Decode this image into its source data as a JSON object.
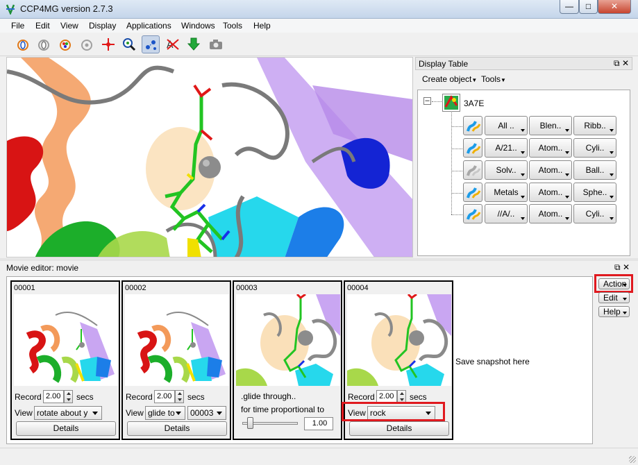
{
  "window": {
    "title": "CCP4MG version 2.7.3"
  },
  "menu": [
    "File",
    "Edit",
    "View",
    "Display",
    "Applications",
    "Windows",
    "Tools",
    "Help"
  ],
  "toolbar": {
    "icons": [
      "rotate-view-icon",
      "reset-view-icon",
      "color-wheel-icon",
      "spin-icon",
      "centre-on-atom-icon",
      "zoom-search-icon",
      "selection-mode-icon",
      "no-labels-icon",
      "download-icon",
      "screenshot-icon"
    ]
  },
  "display_table": {
    "title": "Display Table",
    "menu": {
      "create_object": "Create object",
      "tools": "Tools"
    },
    "molecule": "3A7E",
    "rows": [
      {
        "icon": "ribbon-object-icon",
        "select": "All ..",
        "style": "Blen..",
        "rep": "Ribb.."
      },
      {
        "icon": "ribbon-object-icon",
        "select": "A/21..",
        "style": "Atom..",
        "rep": "Cyli.."
      },
      {
        "icon": "solvent-object-icon",
        "select": "Solv..",
        "style": "Atom..",
        "rep": "Ball.."
      },
      {
        "icon": "ribbon-object-icon",
        "select": "Metals",
        "style": "Atom..",
        "rep": "Sphe.."
      },
      {
        "icon": "ribbon-object-icon",
        "select": "//A/..",
        "style": "Atom..",
        "rep": "Cyli.."
      }
    ]
  },
  "movie_editor": {
    "title": "Movie editor: movie",
    "frames": [
      {
        "num": "00001",
        "record_label": "Record",
        "secs": "2.00",
        "secs_unit": "secs",
        "view_label": "View",
        "view": "rotate about y",
        "details": "Details"
      },
      {
        "num": "00002",
        "record_label": "Record",
        "secs": "2.00",
        "secs_unit": "secs",
        "view_label": "View",
        "view": "glide to",
        "target": "00003",
        "details": "Details"
      },
      {
        "num": "00003",
        "glide_text": ".glide through..",
        "time_text": "for time proportional  to",
        "slider_value": "1.00"
      },
      {
        "num": "00004",
        "record_label": "Record",
        "secs": "2.00",
        "secs_unit": "secs",
        "view_label": "View",
        "view": "rock",
        "details": "Details"
      }
    ],
    "snapshot_text": "Save snapshot here",
    "side_buttons": {
      "action": "Action",
      "edit": "Edit",
      "help": "Help"
    }
  },
  "colors": {
    "highlight": "#e0191f",
    "active_tool": "#c8d6ea"
  }
}
